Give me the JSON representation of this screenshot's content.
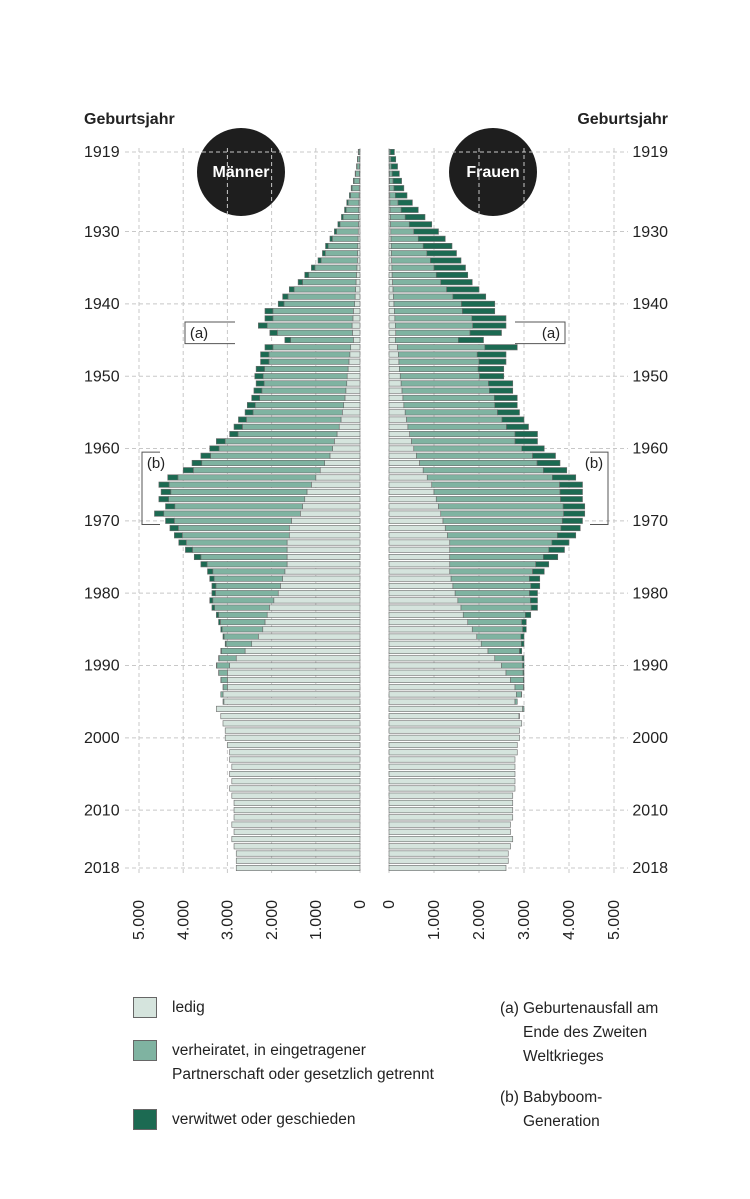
{
  "chart_data": {
    "type": "pyramid",
    "orientation": "horizontal",
    "axis_title": "Geburtsjahr",
    "panels": [
      "Männer",
      "Frauen"
    ],
    "x": [
      1919,
      1920,
      1921,
      1922,
      1923,
      1924,
      1925,
      1926,
      1927,
      1928,
      1929,
      1930,
      1931,
      1932,
      1933,
      1934,
      1935,
      1936,
      1937,
      1938,
      1939,
      1940,
      1941,
      1942,
      1943,
      1944,
      1945,
      1946,
      1947,
      1948,
      1949,
      1950,
      1951,
      1952,
      1953,
      1954,
      1955,
      1956,
      1957,
      1958,
      1959,
      1960,
      1961,
      1962,
      1963,
      1964,
      1965,
      1966,
      1967,
      1968,
      1969,
      1970,
      1971,
      1972,
      1973,
      1974,
      1975,
      1976,
      1977,
      1978,
      1979,
      1980,
      1981,
      1982,
      1983,
      1984,
      1985,
      1986,
      1987,
      1988,
      1989,
      1990,
      1991,
      1992,
      1993,
      1994,
      1995,
      1996,
      1997,
      1998,
      1999,
      2000,
      2001,
      2002,
      2003,
      2004,
      2005,
      2006,
      2007,
      2008,
      2009,
      2010,
      2011,
      2012,
      2013,
      2014,
      2015,
      2016,
      2017,
      2018
    ],
    "xlim": [
      1919,
      2018
    ],
    "xticks": [
      1919,
      1930,
      1940,
      1950,
      1960,
      1970,
      1980,
      1990,
      2000,
      2010,
      2018
    ],
    "ylim": [
      0,
      5000
    ],
    "yticks": [
      0,
      {
        "value": 1000,
        "label": "1.000"
      },
      {
        "value": 2000,
        "label": "2.000"
      },
      {
        "value": 3000,
        "label": "3.000"
      },
      {
        "value": 4000,
        "label": "4.000"
      },
      {
        "value": 5000,
        "label": "5.000"
      }
    ],
    "grid": true,
    "series": [
      {
        "name": "ledig",
        "color": "#d5e4dd",
        "men": [
          5,
          8,
          10,
          12,
          15,
          18,
          20,
          25,
          28,
          30,
          35,
          40,
          45,
          50,
          55,
          60,
          70,
          80,
          90,
          100,
          110,
          120,
          150,
          160,
          180,
          170,
          150,
          210,
          230,
          250,
          270,
          290,
          300,
          320,
          340,
          370,
          400,
          430,
          470,
          520,
          580,
          620,
          680,
          800,
          900,
          1000,
          1100,
          1200,
          1250,
          1300,
          1350,
          1550,
          1600,
          1600,
          1650,
          1650,
          1650,
          1650,
          1700,
          1750,
          1800,
          1850,
          1950,
          2050,
          2100,
          2150,
          2200,
          2300,
          2450,
          2600,
          2800,
          2950,
          3000,
          3000,
          3000,
          3100,
          3080,
          3250,
          3150,
          3100,
          3050,
          3050,
          3000,
          2950,
          2950,
          2900,
          2950,
          2900,
          2950,
          2900,
          2850,
          2850,
          2850,
          2900,
          2850,
          2900,
          2850,
          2800,
          2800,
          2800
        ],
        "women": [
          5,
          6,
          8,
          10,
          12,
          15,
          18,
          22,
          25,
          30,
          35,
          40,
          45,
          50,
          55,
          60,
          65,
          70,
          80,
          90,
          100,
          110,
          120,
          130,
          140,
          150,
          140,
          190,
          210,
          220,
          230,
          250,
          270,
          290,
          310,
          330,
          360,
          390,
          420,
          460,
          500,
          550,
          610,
          680,
          760,
          850,
          950,
          1000,
          1050,
          1100,
          1150,
          1200,
          1250,
          1300,
          1350,
          1350,
          1350,
          1350,
          1350,
          1380,
          1420,
          1470,
          1530,
          1600,
          1650,
          1750,
          1850,
          1950,
          2050,
          2200,
          2350,
          2500,
          2600,
          2700,
          2800,
          2830,
          2800,
          2970,
          2890,
          2950,
          2900,
          2900,
          2850,
          2850,
          2800,
          2800,
          2800,
          2800,
          2800,
          2750,
          2750,
          2750,
          2750,
          2700,
          2700,
          2750,
          2700,
          2650,
          2650,
          2600
        ]
      },
      {
        "name": "verheiratet, in eingetragener Partnerschaft oder gesetzlich getrennt",
        "color": "#7fb3a1",
        "men": [
          30,
          44,
          60,
          86,
          120,
          162,
          195,
          245,
          287,
          350,
          420,
          490,
          580,
          670,
          730,
          820,
          950,
          1080,
          1210,
          1390,
          1520,
          1600,
          1820,
          1810,
          1920,
          1700,
          1420,
          1760,
          1830,
          1810,
          1890,
          1900,
          1870,
          1900,
          1930,
          2000,
          2020,
          2140,
          2190,
          2240,
          2470,
          2570,
          2700,
          2780,
          2870,
          3120,
          3220,
          3080,
          3080,
          2890,
          3090,
          2650,
          2510,
          2420,
          2280,
          2140,
          1950,
          1810,
          1630,
          1550,
          1460,
          1420,
          1380,
          1240,
          1100,
          1010,
          920,
          775,
          580,
          535,
          390,
          290,
          195,
          145,
          95,
          50,
          20,
          0,
          0,
          0,
          0,
          0,
          0,
          0,
          0,
          0,
          0,
          0,
          0,
          0,
          0,
          0,
          0,
          0,
          0,
          0,
          0,
          0,
          0,
          0
        ],
        "women": [
          25,
          34,
          42,
          60,
          78,
          95,
          122,
          178,
          245,
          330,
          415,
          510,
          605,
          710,
          785,
          860,
          935,
          980,
          1070,
          1190,
          1320,
          1500,
          1510,
          1710,
          1720,
          1650,
          1400,
          1940,
          1750,
          1780,
          1750,
          1760,
          1940,
          1940,
          2030,
          2020,
          2050,
          2120,
          2190,
          2340,
          2300,
          2400,
          2580,
          2610,
          2670,
          2780,
          2840,
          2800,
          2760,
          2770,
          2730,
          2650,
          2570,
          2440,
          2270,
          2200,
          2080,
          1910,
          1840,
          1740,
          1730,
          1650,
          1610,
          1560,
          1380,
          1200,
          1120,
          980,
          890,
          700,
          610,
          470,
          380,
          285,
          190,
          115,
          50,
          30,
          10,
          0,
          0,
          0,
          0,
          0,
          0,
          0,
          0,
          0,
          0,
          0,
          0,
          0,
          0,
          0,
          0,
          0,
          0,
          0,
          0,
          0
        ]
      },
      {
        "name": "verwitwet oder geschieden",
        "color": "#1c6a52",
        "men": [
          5,
          8,
          10,
          12,
          15,
          20,
          25,
          30,
          35,
          40,
          45,
          50,
          55,
          60,
          65,
          70,
          80,
          90,
          100,
          110,
          120,
          130,
          180,
          180,
          200,
          170,
          130,
          180,
          190,
          190,
          190,
          190,
          180,
          180,
          180,
          180,
          180,
          180,
          190,
          190,
          200,
          210,
          220,
          220,
          230,
          230,
          230,
          220,
          220,
          210,
          210,
          200,
          190,
          180,
          170,
          160,
          150,
          140,
          120,
          100,
          90,
          80,
          70,
          60,
          50,
          40,
          30,
          25,
          20,
          15,
          10,
          10,
          5,
          5,
          5,
          0,
          0,
          0,
          0,
          0,
          0,
          0,
          0,
          0,
          0,
          0,
          0,
          0,
          0,
          0,
          0,
          0,
          0,
          0,
          0,
          0,
          0,
          0,
          0,
          0
        ],
        "women": [
          90,
          110,
          140,
          160,
          190,
          220,
          260,
          320,
          380,
          440,
          500,
          550,
          600,
          640,
          660,
          680,
          700,
          700,
          700,
          720,
          730,
          740,
          720,
          760,
          740,
          700,
          560,
          720,
          640,
          600,
          570,
          540,
          540,
          520,
          510,
          500,
          490,
          490,
          490,
          500,
          500,
          500,
          510,
          510,
          520,
          520,
          510,
          500,
          490,
          480,
          470,
          450,
          430,
          410,
          380,
          350,
          320,
          290,
          260,
          230,
          200,
          180,
          160,
          140,
          120,
          100,
          80,
          70,
          60,
          50,
          40,
          30,
          20,
          15,
          10,
          5,
          0,
          0,
          0,
          0,
          0,
          0,
          0,
          0,
          0,
          0,
          0,
          0,
          0,
          0,
          0,
          0,
          0,
          0,
          0,
          0,
          0,
          0,
          0,
          0
        ]
      }
    ],
    "annotations": [
      {
        "label": "(a)",
        "text": "Geburtenausfall am Ende des Zweiten Weltkrieges",
        "from": 1943,
        "to": 1945
      },
      {
        "label": "(b)",
        "text": "Babyboom-Generation",
        "from": 1961,
        "to": 1970
      }
    ]
  }
}
